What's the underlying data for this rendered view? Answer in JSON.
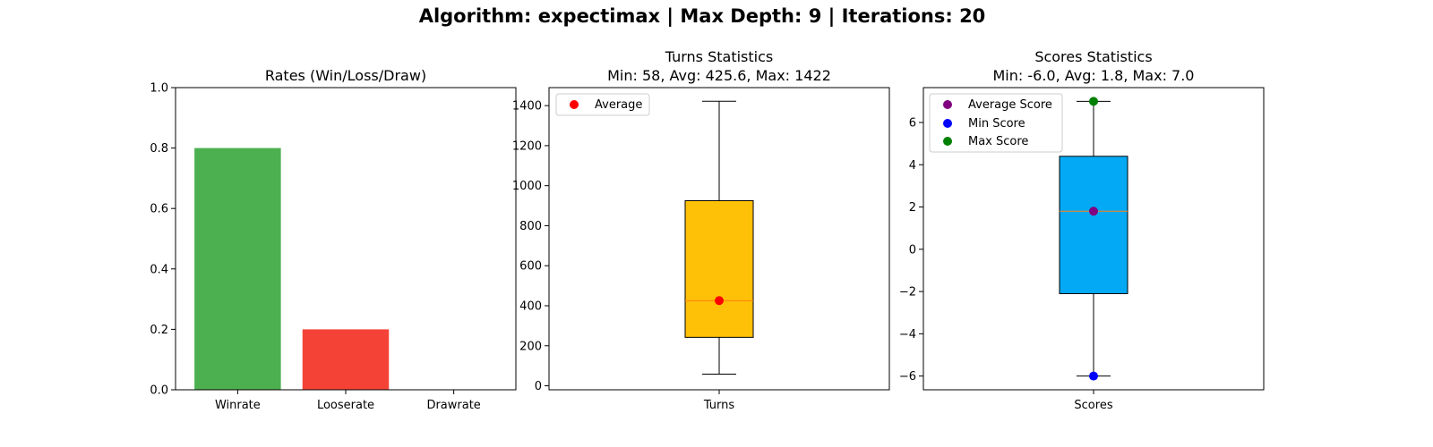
{
  "suptitle": "Algorithm: expectimax | Max Depth: 9 | Iterations: 20",
  "chart_data": [
    {
      "type": "bar",
      "title": "Rates (Win/Loss/Draw)",
      "categories": [
        "Winrate",
        "Looserate",
        "Drawrate"
      ],
      "values": [
        0.8,
        0.2,
        0.0
      ],
      "colors": [
        "#4caf50",
        "#f44336",
        "#2196f3"
      ],
      "ylim": [
        0,
        1.0
      ],
      "yticks": [
        0.0,
        0.2,
        0.4,
        0.6,
        0.8,
        1.0
      ],
      "ytick_labels": [
        "0.0",
        "0.2",
        "0.4",
        "0.6",
        "0.8",
        "1.0"
      ],
      "grid": false
    },
    {
      "type": "box",
      "title_lines": [
        "Turns Statistics",
        "Min: 58, Avg: 425.6, Max: 1422"
      ],
      "category": "Turns",
      "box": {
        "whisker_low": 58,
        "q1": 242,
        "median": 425,
        "q3": 925,
        "whisker_high": 1422
      },
      "box_color": "#ffc107",
      "median_color": "#ff7f0e",
      "points": [
        {
          "name": "Average",
          "value": 425.6,
          "color": "#ff0000"
        }
      ],
      "legend": [
        "Average"
      ],
      "legend_position": "upper-left",
      "ylim": [
        -20,
        1490
      ],
      "yticks": [
        0,
        200,
        400,
        600,
        800,
        1000,
        1200,
        1400
      ],
      "ytick_labels": [
        "0",
        "200",
        "400",
        "600",
        "800",
        "1000",
        "1200",
        "1400"
      ],
      "grid": false
    },
    {
      "type": "box",
      "title_lines": [
        "Scores Statistics",
        "Min: -6.0, Avg: 1.8, Max: 7.0"
      ],
      "category": "Scores",
      "box": {
        "whisker_low": -6.0,
        "q1": -2.1,
        "median": 1.8,
        "q3": 4.4,
        "whisker_high": 7.0
      },
      "box_color": "#03a9f4",
      "median_color": "#ff7f0e",
      "points": [
        {
          "name": "Average Score",
          "value": 1.8,
          "color": "#800080"
        },
        {
          "name": "Min Score",
          "value": -6.0,
          "color": "#0000ff"
        },
        {
          "name": "Max Score",
          "value": 7.0,
          "color": "#008000"
        }
      ],
      "legend": [
        "Average Score",
        "Min Score",
        "Max Score"
      ],
      "legend_position": "upper-left",
      "ylim": [
        -6.65,
        7.65
      ],
      "yticks": [
        -6,
        -4,
        -2,
        0,
        2,
        4,
        6
      ],
      "ytick_labels": [
        "−6",
        "−4",
        "−2",
        "0",
        "2",
        "4",
        "6"
      ],
      "grid": false
    }
  ]
}
